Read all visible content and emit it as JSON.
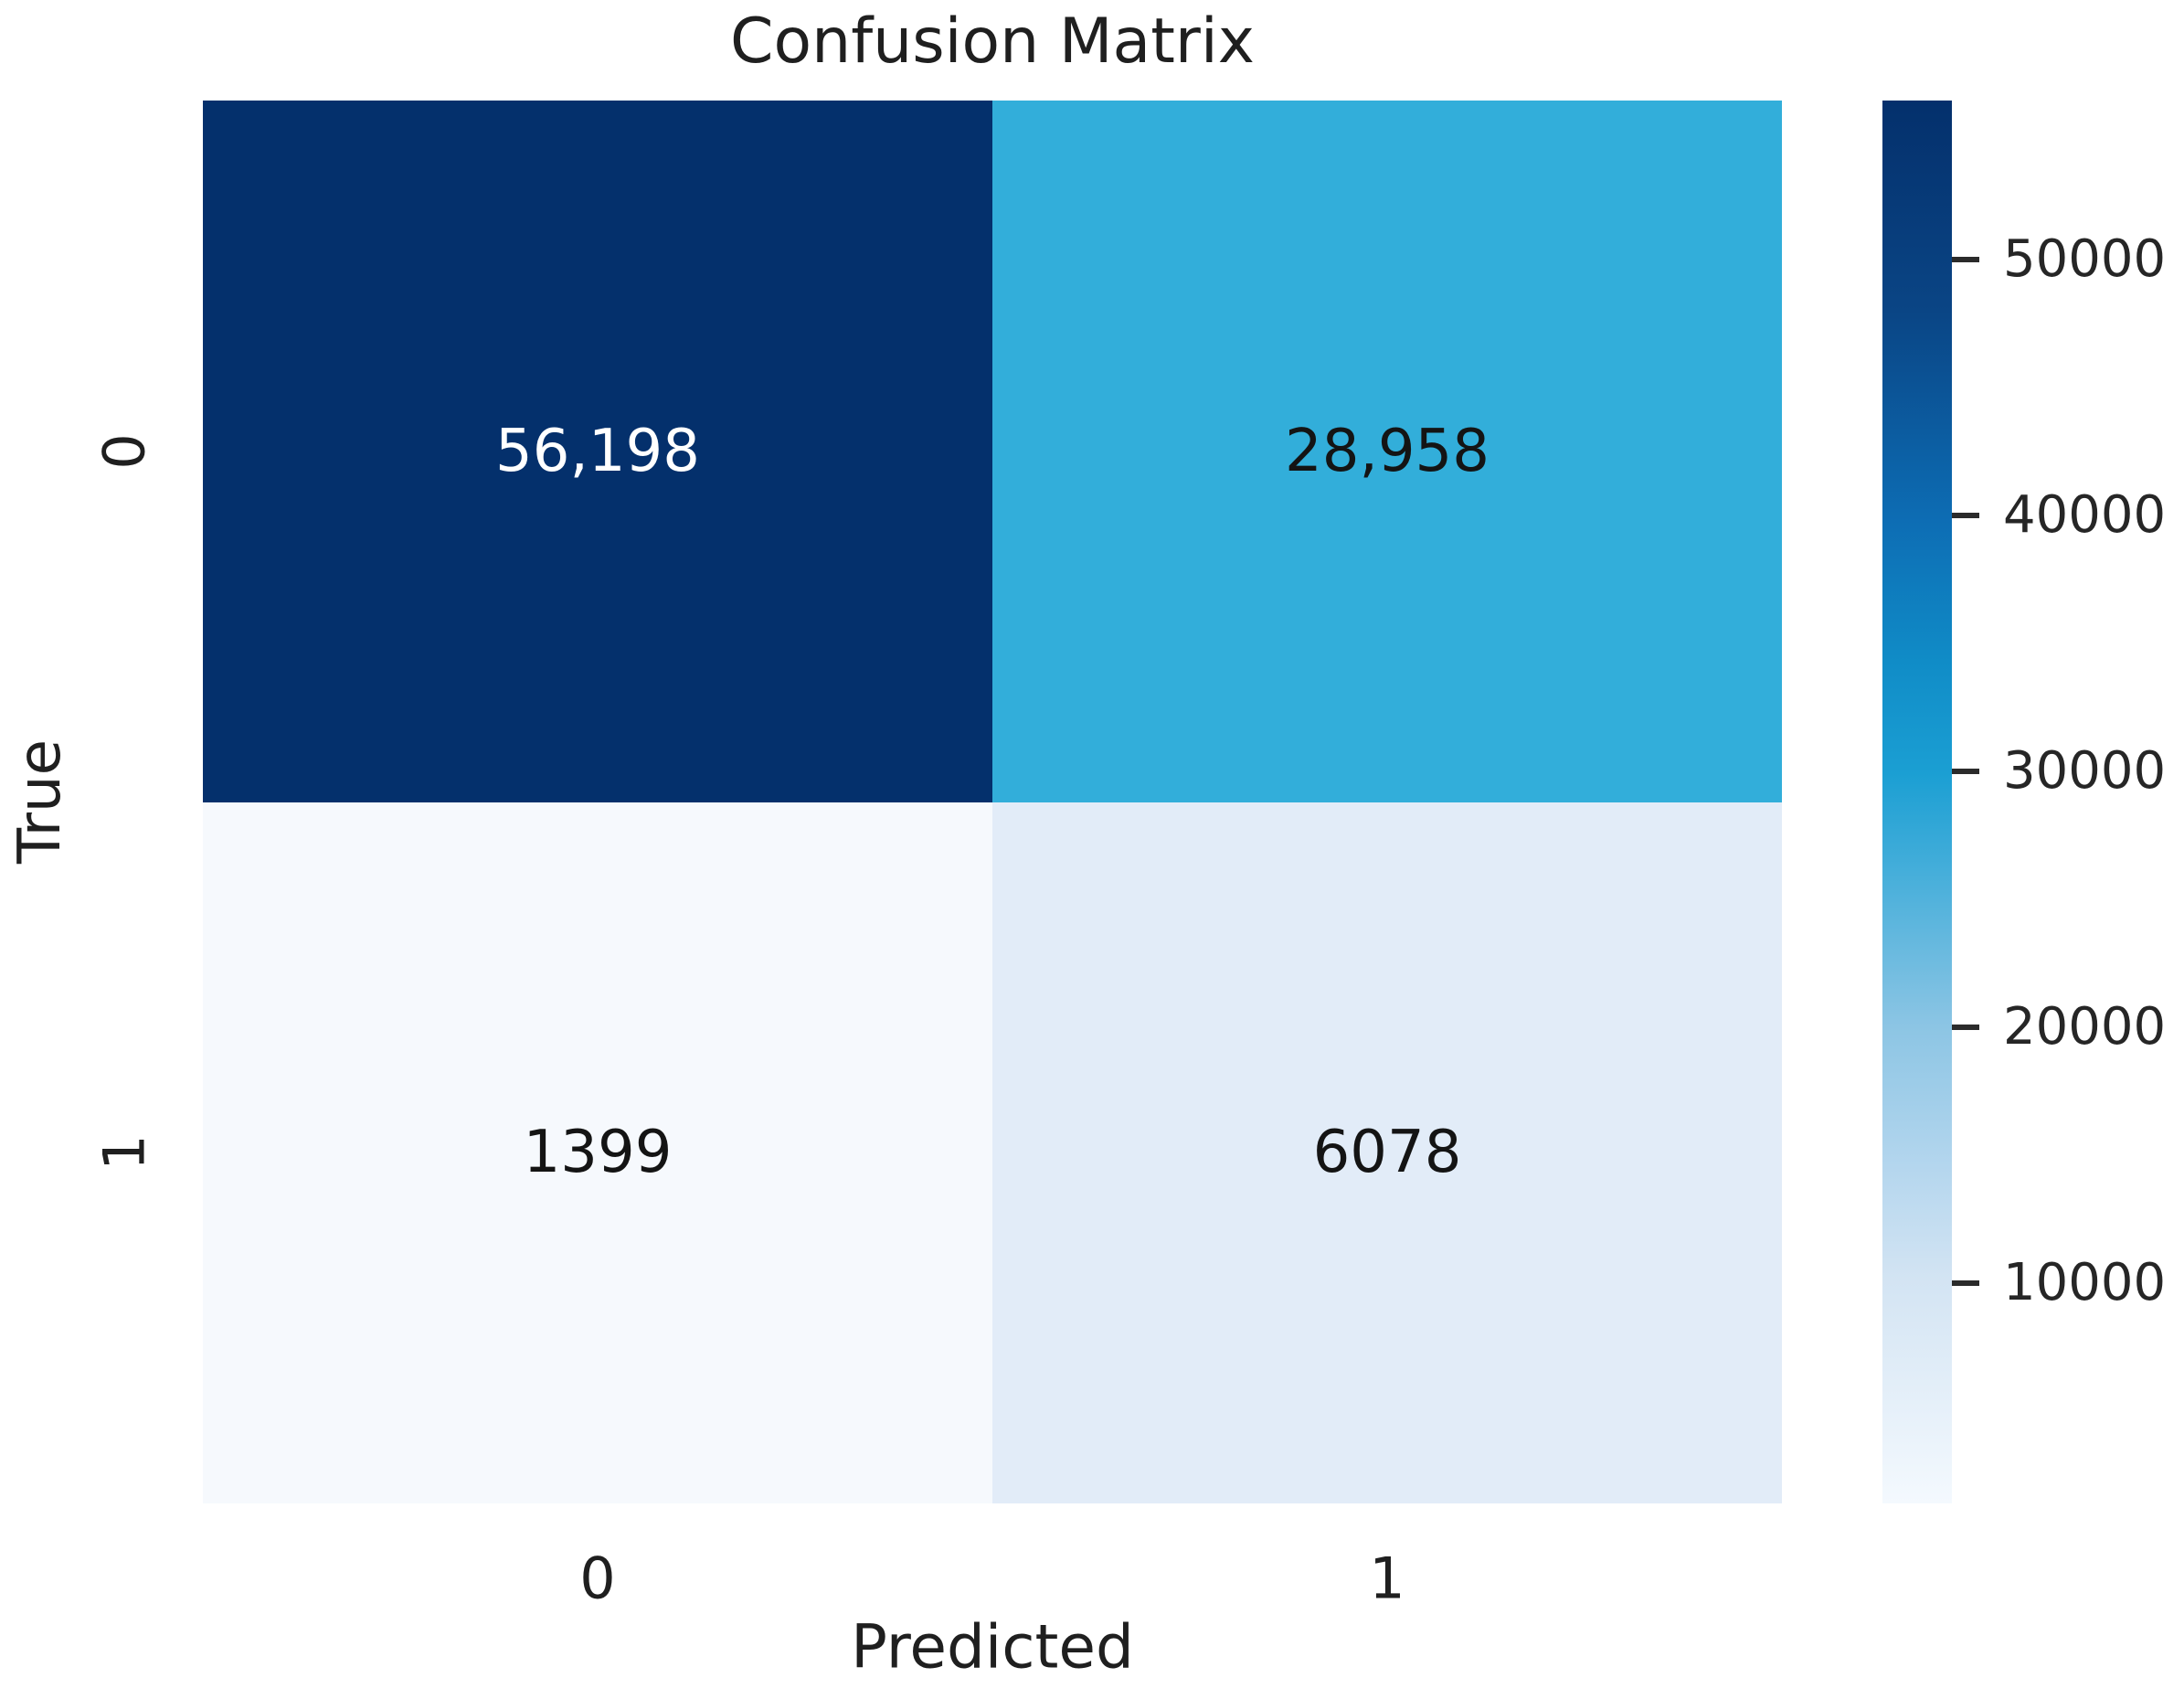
{
  "chart_data": {
    "type": "heatmap",
    "title": "Confusion Matrix",
    "xlabel": "Predicted",
    "ylabel": "True",
    "x_categories": [
      "0",
      "1"
    ],
    "y_categories": [
      "0",
      "1"
    ],
    "matrix": [
      [
        56198,
        28958
      ],
      [
        1399,
        6078
      ]
    ],
    "cell_labels": [
      [
        "56,198",
        "28,958"
      ],
      [
        "1399",
        "6078"
      ]
    ],
    "vmin": 1399,
    "vmax": 56198,
    "colormap": "Blues",
    "grid": false,
    "legend_position": "right-colorbar",
    "colorbar_tick_values": [
      50000,
      40000,
      30000,
      20000,
      10000
    ]
  },
  "title": "Confusion Matrix",
  "axes": {
    "xlabel": "Predicted",
    "ylabel": "True",
    "x_ticks": [
      "0",
      "1"
    ],
    "y_ticks": [
      "0",
      "1"
    ]
  },
  "cells": [
    {
      "row": "0",
      "col": "0",
      "label": "56,198",
      "bg": "#04306c",
      "fg": "#ffffff"
    },
    {
      "row": "0",
      "col": "1",
      "label": "28,958",
      "bg": "#32aeda",
      "fg": "#141414"
    },
    {
      "row": "1",
      "col": "0",
      "label": "1399",
      "bg": "#f6f9fd",
      "fg": "#141414"
    },
    {
      "row": "1",
      "col": "1",
      "label": "6078",
      "bg": "#e2ecf8",
      "fg": "#141414"
    }
  ],
  "colorbar": {
    "vmin": 1399,
    "vmax": 56198,
    "ticks": [
      {
        "value": 50000,
        "label": "50000"
      },
      {
        "value": 40000,
        "label": "40000"
      },
      {
        "value": 30000,
        "label": "30000"
      },
      {
        "value": 20000,
        "label": "20000"
      },
      {
        "value": 10000,
        "label": "10000"
      }
    ],
    "gradient": [
      "#04306c 0%",
      "#0a4585 15%",
      "#0d6db4 30%",
      "#108cc7 40%",
      "#1b9fd3 48%",
      "#45aeda 55%",
      "#8cc5e4 66%",
      "#b4d6ee 76%",
      "#d3e4f3 84%",
      "#f4f9fe 100%"
    ]
  },
  "colors": {
    "background": "#ffffff",
    "text": "#1f1f1f",
    "tick_mark": "#2b2b2b",
    "cell_max": "#04306c",
    "cell_min": "#f6f9fd"
  }
}
